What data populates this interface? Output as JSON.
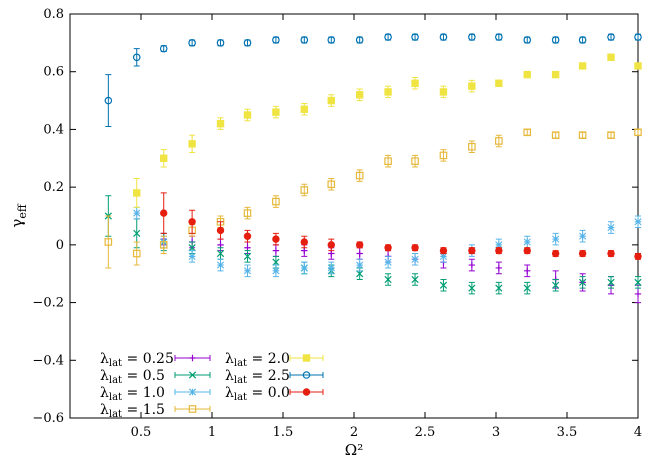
{
  "chart_data": {
    "type": "scatter",
    "xlabel": "Ω²",
    "ylabel_main": "γ",
    "ylabel_sub": "eff",
    "xlim": [
      0,
      4
    ],
    "ylim": [
      -0.6,
      0.8
    ],
    "xticks": [
      0.5,
      1,
      1.5,
      2,
      2.5,
      3,
      3.5,
      4
    ],
    "xtick_labels": [
      "0.5",
      "1",
      "1.5",
      "2",
      "2.5",
      "3",
      "3.5",
      "4"
    ],
    "yticks": [
      -0.6,
      -0.4,
      -0.2,
      0,
      0.2,
      0.4,
      0.6,
      0.8
    ],
    "ytick_labels": [
      "−0.6",
      "−0.4",
      "−0.2",
      "0",
      "0.2",
      "0.4",
      "0.6",
      "0.8"
    ],
    "legend_placement": "bottom-left",
    "x": [
      0.27,
      0.47,
      0.66,
      0.86,
      1.06,
      1.25,
      1.45,
      1.65,
      1.84,
      2.04,
      2.24,
      2.43,
      2.63,
      2.83,
      3.02,
      3.22,
      3.42,
      3.61,
      3.81,
      4.0
    ],
    "series": [
      {
        "name": "λ_lat = 0.25",
        "label_main": "λ",
        "label_sub": "lat",
        "label_value": " = 0.25",
        "marker": "plus",
        "color": "#9400d3",
        "y": [
          null,
          null,
          0.02,
          0.01,
          0.0,
          -0.01,
          -0.02,
          -0.02,
          -0.03,
          -0.03,
          -0.04,
          -0.05,
          -0.06,
          -0.07,
          -0.08,
          -0.09,
          -0.12,
          -0.13,
          -0.14,
          -0.17
        ],
        "err": [
          null,
          null,
          0.02,
          0.02,
          0.02,
          0.02,
          0.02,
          0.02,
          0.02,
          0.02,
          0.02,
          0.02,
          0.02,
          0.02,
          0.02,
          0.02,
          0.03,
          0.03,
          0.03,
          0.03
        ]
      },
      {
        "name": "λ_lat = 0.5",
        "label_main": "λ",
        "label_sub": "lat",
        "label_value": " = 0.5",
        "marker": "cross",
        "color": "#009e73",
        "y": [
          0.1,
          0.04,
          0.01,
          -0.01,
          -0.03,
          -0.04,
          -0.06,
          -0.08,
          -0.09,
          -0.1,
          -0.12,
          -0.12,
          -0.14,
          -0.15,
          -0.15,
          -0.15,
          -0.14,
          -0.13,
          -0.13,
          -0.13
        ],
        "err": [
          0.07,
          0.05,
          0.03,
          0.02,
          0.02,
          0.02,
          0.02,
          0.02,
          0.02,
          0.02,
          0.02,
          0.02,
          0.02,
          0.02,
          0.02,
          0.02,
          0.02,
          0.02,
          0.02,
          0.02
        ]
      },
      {
        "name": "λ_lat = 1.0",
        "label_main": "λ",
        "label_sub": "lat",
        "label_value": " = 1.0",
        "marker": "star",
        "color": "#56b4e9",
        "y": [
          null,
          0.11,
          0.01,
          -0.04,
          -0.07,
          -0.09,
          -0.09,
          -0.08,
          -0.08,
          -0.07,
          -0.06,
          -0.05,
          -0.04,
          -0.02,
          0.0,
          0.01,
          0.02,
          0.03,
          0.06,
          0.08
        ],
        "err": [
          null,
          0.02,
          0.02,
          0.02,
          0.02,
          0.02,
          0.02,
          0.02,
          0.02,
          0.02,
          0.02,
          0.02,
          0.02,
          0.02,
          0.02,
          0.02,
          0.02,
          0.02,
          0.02,
          0.02
        ]
      },
      {
        "name": "λ_lat = 1.5",
        "label_main": "λ",
        "label_sub": "lat",
        "label_value": " = 1.5",
        "marker": "square-open",
        "color": "#e6b83a",
        "y": [
          0.01,
          -0.03,
          0.0,
          0.05,
          0.08,
          0.11,
          0.15,
          0.19,
          0.21,
          0.24,
          0.29,
          0.29,
          0.31,
          0.34,
          0.36,
          0.39,
          0.38,
          0.38,
          0.38,
          0.39
        ],
        "err": [
          0.09,
          0.04,
          0.03,
          0.02,
          0.02,
          0.02,
          0.02,
          0.02,
          0.02,
          0.02,
          0.02,
          0.02,
          0.02,
          0.02,
          0.02,
          0.01,
          0.01,
          0.01,
          0.01,
          0.01
        ]
      },
      {
        "name": "λ_lat = 2.0",
        "label_main": "λ",
        "label_sub": "lat",
        "label_value": " = 2.0",
        "marker": "square-filled",
        "color": "#f0e442",
        "y": [
          null,
          0.18,
          0.3,
          0.35,
          0.42,
          0.45,
          0.46,
          0.47,
          0.5,
          0.52,
          0.53,
          0.56,
          0.53,
          0.55,
          0.56,
          0.59,
          0.59,
          0.62,
          0.65,
          0.62
        ],
        "err": [
          null,
          0.05,
          0.03,
          0.03,
          0.02,
          0.02,
          0.02,
          0.02,
          0.02,
          0.02,
          0.02,
          0.02,
          0.02,
          0.02,
          0.01,
          0.01,
          0.01,
          0.01,
          0.01,
          0.01
        ]
      },
      {
        "name": "λ_lat = 2.5",
        "label_main": "λ",
        "label_sub": "lat",
        "label_value": " = 2.5",
        "marker": "circle-open",
        "color": "#0072b2",
        "y": [
          0.5,
          0.65,
          0.68,
          0.7,
          0.7,
          0.7,
          0.71,
          0.71,
          0.71,
          0.71,
          0.72,
          0.72,
          0.72,
          0.72,
          0.72,
          0.71,
          0.71,
          0.71,
          0.72,
          0.72
        ],
        "err": [
          0.09,
          0.03,
          0.01,
          0.01,
          0.01,
          0.01,
          0.01,
          0.01,
          0.01,
          0.01,
          0.01,
          0.01,
          0.01,
          0.01,
          0.01,
          0.01,
          0.01,
          0.01,
          0.01,
          0.01
        ]
      },
      {
        "name": "λ_lat = 0.0",
        "label_main": "λ",
        "label_sub": "lat",
        "label_value": " = 0.0",
        "marker": "circle-filled",
        "color": "#e51e10",
        "y": [
          null,
          null,
          0.11,
          0.08,
          0.05,
          0.03,
          0.02,
          0.01,
          0.0,
          0.0,
          -0.01,
          -0.01,
          -0.02,
          -0.02,
          -0.02,
          -0.02,
          -0.03,
          -0.03,
          -0.03,
          -0.04
        ],
        "err": [
          null,
          null,
          0.07,
          0.04,
          0.03,
          0.02,
          0.02,
          0.02,
          0.02,
          0.01,
          0.01,
          0.01,
          0.01,
          0.01,
          0.01,
          0.01,
          0.01,
          0.01,
          0.01,
          0.01
        ]
      }
    ]
  }
}
